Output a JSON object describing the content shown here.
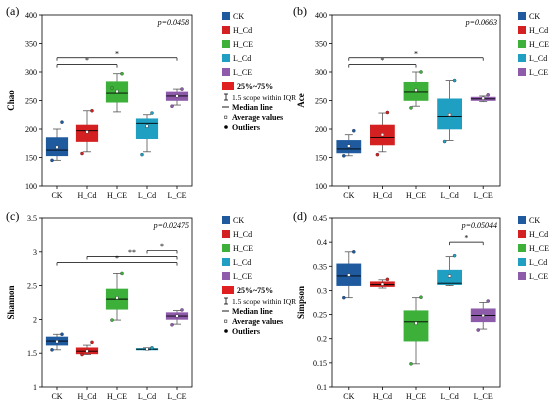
{
  "colors": {
    "CK": "#1f5a9e",
    "H_Cd": "#d42020",
    "H_CE": "#3db03a",
    "L_Cd": "#1f9fc2",
    "L_CE": "#8e5bab",
    "whisker": "#555555",
    "median": "#000000",
    "bracket": "#000000"
  },
  "chart_data": [
    {
      "type": "box",
      "panel_label": "(a)",
      "ylabel": "Chao",
      "ylim": [
        100,
        400
      ],
      "yticks": [
        100,
        150,
        200,
        250,
        300,
        350,
        400
      ],
      "pvalue": "p=0.0458",
      "categories": [
        "CK",
        "H_Cd",
        "H_CE",
        "L_Cd",
        "L_CE"
      ],
      "boxes": [
        {
          "q1": 153,
          "median": 163,
          "q3": 185,
          "wlo": 145,
          "whi": 200,
          "mean": 168,
          "outliers": [
            212,
            145
          ]
        },
        {
          "q1": 178,
          "median": 197,
          "q3": 207,
          "wlo": 160,
          "whi": 232,
          "mean": 195,
          "outliers": [
            232,
            157
          ]
        },
        {
          "q1": 247,
          "median": 263,
          "q3": 283,
          "wlo": 230,
          "whi": 297,
          "mean": 266,
          "outliers": [
            297,
            272
          ]
        },
        {
          "q1": 183,
          "median": 210,
          "q3": 218,
          "wlo": 160,
          "whi": 225,
          "mean": 205,
          "outliers": [
            228,
            155
          ]
        },
        {
          "q1": 250,
          "median": 258,
          "q3": 265,
          "wlo": 242,
          "whi": 270,
          "mean": 258,
          "outliers": [
            270,
            240
          ]
        }
      ],
      "legend": {
        "items": [
          "CK",
          "H_Cd",
          "H_CE",
          "L_Cd",
          "L_CE"
        ],
        "box_label": "25%~75%",
        "iqr_label": "1.5 scope within IQR",
        "median_label": "Median line",
        "mean_label": "Average values",
        "outlier_label": "Outliers"
      },
      "brackets": [
        {
          "from": 0,
          "to": 4,
          "label": "*",
          "y": 325
        },
        {
          "from": 0,
          "to": 2,
          "label": "*",
          "y": 313
        }
      ]
    },
    {
      "type": "box",
      "panel_label": "(b)",
      "ylabel": "Ace",
      "ylim": [
        100,
        400
      ],
      "yticks": [
        100,
        150,
        200,
        250,
        300,
        350,
        400
      ],
      "pvalue": "p=0.0663",
      "categories": [
        "CK",
        "H_Cd",
        "H_CE",
        "L_Cd",
        "L_CE"
      ],
      "boxes": [
        {
          "q1": 158,
          "median": 165,
          "q3": 180,
          "wlo": 153,
          "whi": 190,
          "mean": 170,
          "outliers": [
            197,
            153
          ]
        },
        {
          "q1": 172,
          "median": 185,
          "q3": 207,
          "wlo": 160,
          "whi": 228,
          "mean": 190,
          "outliers": [
            229,
            155
          ]
        },
        {
          "q1": 250,
          "median": 265,
          "q3": 282,
          "wlo": 240,
          "whi": 300,
          "mean": 268,
          "outliers": [
            300,
            237
          ]
        },
        {
          "q1": 200,
          "median": 222,
          "q3": 253,
          "wlo": 180,
          "whi": 285,
          "mean": 225,
          "outliers": [
            285,
            178
          ]
        },
        {
          "q1": 250,
          "median": 253,
          "q3": 256,
          "wlo": 248,
          "whi": 258,
          "mean": 254,
          "outliers": [
            260
          ]
        }
      ],
      "legend": {
        "items": [
          "CK",
          "H_Cd",
          "H_CE",
          "L_Cd",
          "L_CE"
        ]
      },
      "brackets": [
        {
          "from": 0,
          "to": 4,
          "label": "*",
          "y": 325
        },
        {
          "from": 0,
          "to": 2,
          "label": "*",
          "y": 313
        }
      ]
    },
    {
      "type": "box",
      "panel_label": "(c)",
      "ylabel": "Shannon",
      "ylim": [
        1,
        3.5
      ],
      "yticks": [
        1,
        1.5,
        2,
        2.5,
        3,
        3.5
      ],
      "pvalue": "p=0.02475",
      "categories": [
        "CK",
        "H_Cd",
        "H_CE",
        "L_Cd",
        "L_CE"
      ],
      "boxes": [
        {
          "q1": 1.62,
          "median": 1.68,
          "q3": 1.74,
          "wlo": 1.55,
          "whi": 1.78,
          "mean": 1.67,
          "outliers": [
            1.78,
            1.55
          ]
        },
        {
          "q1": 1.49,
          "median": 1.53,
          "q3": 1.58,
          "wlo": 1.48,
          "whi": 1.62,
          "mean": 1.53,
          "outliers": [
            1.66,
            1.48
          ]
        },
        {
          "q1": 2.15,
          "median": 2.3,
          "q3": 2.45,
          "wlo": 1.99,
          "whi": 2.68,
          "mean": 2.32,
          "outliers": [
            2.68,
            1.99
          ]
        },
        {
          "q1": 1.55,
          "median": 1.56,
          "q3": 1.57,
          "wlo": 1.55,
          "whi": 1.58,
          "mean": 1.56,
          "outliers": [
            1.58
          ]
        },
        {
          "q1": 2.0,
          "median": 2.05,
          "q3": 2.1,
          "wlo": 1.93,
          "whi": 2.13,
          "mean": 2.05,
          "outliers": [
            2.14,
            1.92
          ]
        }
      ],
      "legend": {
        "items": [
          "CK",
          "H_Cd",
          "H_CE",
          "L_Cd",
          "L_CE"
        ],
        "box_label": "25%~75%",
        "iqr_label": "1.5 scope within IQR",
        "median_label": "Median line",
        "mean_label": "Average values",
        "outlier_label": "Outliers"
      },
      "brackets": [
        {
          "from": 3,
          "to": 4,
          "label": "*",
          "y": 3.02
        },
        {
          "from": 1,
          "to": 4,
          "label": "**",
          "y": 2.93
        },
        {
          "from": 0,
          "to": 4,
          "label": "*",
          "y": 2.84
        }
      ]
    },
    {
      "type": "box",
      "panel_label": "(d)",
      "ylabel": "Simpson",
      "ylim": [
        0.1,
        0.45
      ],
      "yticks": [
        0.1,
        0.15,
        0.2,
        0.25,
        0.3,
        0.35,
        0.4,
        0.45
      ],
      "pvalue": "p=0.05044",
      "categories": [
        "CK",
        "H_Cd",
        "H_CE",
        "L_Cd",
        "L_CE"
      ],
      "boxes": [
        {
          "q1": 0.31,
          "median": 0.33,
          "q3": 0.355,
          "wlo": 0.285,
          "whi": 0.38,
          "mean": 0.332,
          "outliers": [
            0.38,
            0.285
          ]
        },
        {
          "q1": 0.308,
          "median": 0.312,
          "q3": 0.318,
          "wlo": 0.305,
          "whi": 0.322,
          "mean": 0.313,
          "outliers": [
            0.323
          ]
        },
        {
          "q1": 0.195,
          "median": 0.235,
          "q3": 0.258,
          "wlo": 0.148,
          "whi": 0.285,
          "mean": 0.232,
          "outliers": [
            0.286,
            0.148
          ]
        },
        {
          "q1": 0.312,
          "median": 0.315,
          "q3": 0.342,
          "wlo": 0.31,
          "whi": 0.37,
          "mean": 0.33,
          "outliers": [
            0.372
          ]
        },
        {
          "q1": 0.235,
          "median": 0.248,
          "q3": 0.262,
          "wlo": 0.22,
          "whi": 0.275,
          "mean": 0.248,
          "outliers": [
            0.278,
            0.218
          ]
        }
      ],
      "legend": {
        "items": [
          "CK",
          "H_Cd",
          "H_CE",
          "L_Cd",
          "L_CE"
        ]
      },
      "brackets": [
        {
          "from": 3,
          "to": 4,
          "label": "*",
          "y": 0.4
        }
      ]
    }
  ]
}
